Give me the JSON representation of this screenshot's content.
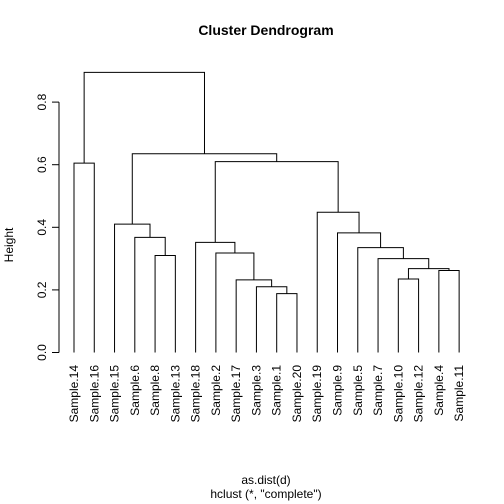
{
  "chart_data": {
    "type": "dendrogram",
    "title": "Cluster Dendrogram",
    "ylabel": "Height",
    "xlabel": "as.dist(d)",
    "subtitle": "hclust (*, \"complete\")",
    "ylim": [
      0,
      0.9
    ],
    "yticks": [
      0.0,
      0.2,
      0.4,
      0.6,
      0.8
    ],
    "ytick_labels": [
      "0.0",
      "0.2",
      "0.4",
      "0.6",
      "0.8"
    ],
    "leaves": [
      "Sample.14",
      "Sample.16",
      "Sample.15",
      "Sample.6",
      "Sample.8",
      "Sample.13",
      "Sample.18",
      "Sample.2",
      "Sample.17",
      "Sample.3",
      "Sample.1",
      "Sample.20",
      "Sample.19",
      "Sample.9",
      "Sample.5",
      "Sample.7",
      "Sample.10",
      "Sample.12",
      "Sample.4",
      "Sample.11"
    ],
    "merges": [
      {
        "id": "m1",
        "left": "Sample.14",
        "right": "Sample.16",
        "height": 0.605
      },
      {
        "id": "m2",
        "left": "Sample.8",
        "right": "Sample.13",
        "height": 0.31
      },
      {
        "id": "m3",
        "left": "Sample.6",
        "right": "m2",
        "height": 0.368
      },
      {
        "id": "m4",
        "left": "Sample.15",
        "right": "m3",
        "height": 0.41
      },
      {
        "id": "m5",
        "left": "Sample.1",
        "right": "Sample.20",
        "height": 0.188
      },
      {
        "id": "m6",
        "left": "Sample.3",
        "right": "m5",
        "height": 0.21
      },
      {
        "id": "m7",
        "left": "m6",
        "right": "Sample.17",
        "height": 0.232
      },
      {
        "id": "m8",
        "left": "Sample.2",
        "right": "m7",
        "height": 0.318
      },
      {
        "id": "m9",
        "left": "Sample.18",
        "right": "m8",
        "height": 0.352
      },
      {
        "id": "m10",
        "left": "Sample.10",
        "right": "Sample.12",
        "height": 0.235
      },
      {
        "id": "m11",
        "left": "Sample.4",
        "right": "Sample.11",
        "height": 0.262
      },
      {
        "id": "m12",
        "left": "m10",
        "right": "m11",
        "height": 0.268
      },
      {
        "id": "m13",
        "left": "Sample.7",
        "right": "m12",
        "height": 0.3
      },
      {
        "id": "m14",
        "left": "Sample.5",
        "right": "m13",
        "height": 0.335
      },
      {
        "id": "m15",
        "left": "Sample.9",
        "right": "m14",
        "height": 0.382
      },
      {
        "id": "m16",
        "left": "Sample.19",
        "right": "m15",
        "height": 0.448
      },
      {
        "id": "m17",
        "left": "m9",
        "right": "m16",
        "height": 0.61
      },
      {
        "id": "m18",
        "left": "m4",
        "right": "m17",
        "height": 0.635
      },
      {
        "id": "m19",
        "left": "m1",
        "right": "m18",
        "height": 0.895
      }
    ]
  }
}
